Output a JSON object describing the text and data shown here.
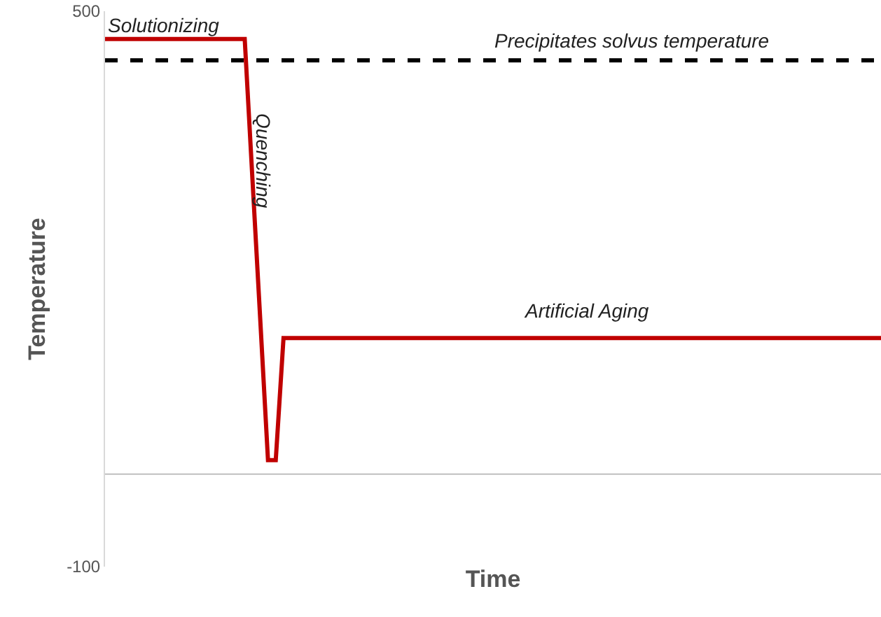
{
  "chart_data": {
    "type": "line",
    "xlabel": "Time",
    "ylabel": "Temperature",
    "categories": [
      null,
      null,
      null,
      null,
      null,
      null,
      null,
      null,
      null,
      null,
      null,
      null,
      null,
      null,
      null,
      null,
      null,
      null,
      null,
      null,
      null,
      null,
      null,
      null,
      null,
      null,
      null,
      null,
      null,
      null,
      null,
      null,
      null,
      null,
      null,
      null,
      null,
      null,
      null,
      null,
      null,
      null,
      null,
      null,
      null,
      null,
      null,
      null,
      null,
      null,
      null,
      null,
      null,
      null,
      null,
      null,
      null,
      null,
      null,
      null,
      null,
      null,
      null,
      null,
      null,
      null,
      null,
      null,
      null,
      null,
      null,
      null,
      null,
      null,
      null,
      null,
      null,
      null,
      null,
      null,
      null,
      null,
      null,
      null,
      null,
      null,
      null,
      null,
      null,
      null,
      null,
      null,
      null,
      null,
      null,
      null,
      null,
      null,
      null,
      null,
      null
    ],
    "series": [
      {
        "color": "#c00000",
        "values": [
          470,
          470,
          470,
          470,
          470,
          470,
          470,
          470,
          470,
          470,
          470,
          470,
          470,
          470,
          470,
          470,
          470,
          470,
          470,
          318,
          167,
          15,
          15,
          147,
          147,
          147,
          147,
          147,
          147,
          147,
          147,
          147,
          147,
          147,
          147,
          147,
          147,
          147,
          147,
          147,
          147,
          147,
          147,
          147,
          147,
          147,
          147,
          147,
          147,
          147,
          147,
          147,
          147,
          147,
          147,
          147,
          147,
          147,
          147,
          147,
          147,
          147,
          147,
          147,
          147,
          147,
          147,
          147,
          147,
          147,
          147,
          147,
          147,
          147,
          147,
          147,
          147,
          147,
          147,
          147,
          147,
          147,
          147,
          147,
          147,
          147,
          147,
          147,
          147,
          147,
          147,
          147,
          147,
          147,
          147,
          147,
          147,
          147,
          147,
          147,
          147
        ]
      }
    ],
    "ylim": [
      -100,
      500
    ],
    "yticks": [
      -100,
      500
    ],
    "tick_labels": "y",
    "ref_lines": [
      {
        "axis": "y",
        "value": 447,
        "label": "Precipitates solvus temperature",
        "color": "#000000",
        "line_style": "dashed"
      },
      {
        "axis": "y",
        "value": 0,
        "label": null,
        "color": "#bfbfbf",
        "line_style": "solid"
      }
    ],
    "annotations": [
      "Solutionizing",
      "Quenching",
      "Artificial Aging"
    ]
  }
}
